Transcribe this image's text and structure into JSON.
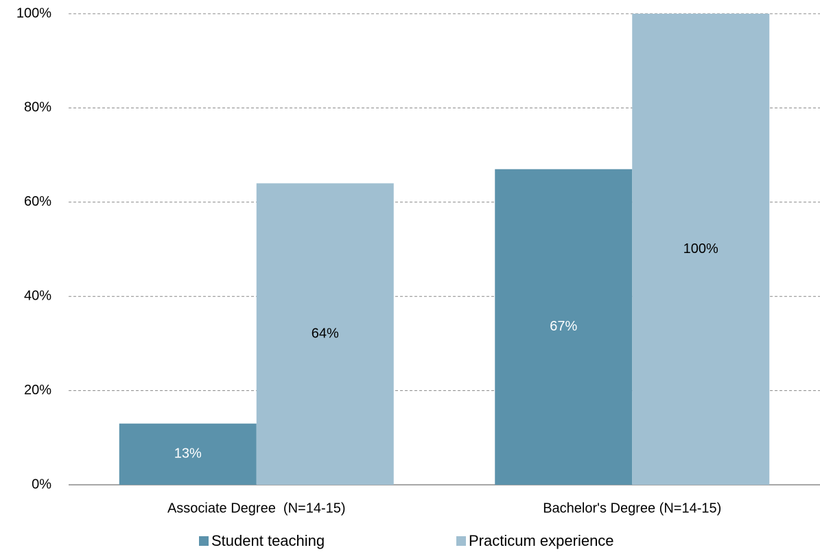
{
  "chart_data": {
    "type": "bar",
    "categories": [
      "Associate Degree  (N=14-15)",
      "Bachelor's Degree (N=14-15)"
    ],
    "series": [
      {
        "name": "Student teaching",
        "color": "#5b92ab",
        "label_color": "#ffffff",
        "values": [
          13,
          67
        ],
        "value_labels": [
          "13%",
          "67%"
        ]
      },
      {
        "name": "Practicum experience",
        "color": "#a0bfd1",
        "label_color": "#000000",
        "values": [
          64,
          100
        ],
        "value_labels": [
          "64%",
          "100%"
        ]
      }
    ],
    "ylim": [
      0,
      100
    ],
    "yticks": [
      {
        "value": 0,
        "label": "0%"
      },
      {
        "value": 20,
        "label": "20%"
      },
      {
        "value": 40,
        "label": "40%"
      },
      {
        "value": 60,
        "label": "60%"
      },
      {
        "value": 80,
        "label": "80%"
      },
      {
        "value": 100,
        "label": "100%"
      }
    ],
    "grid": true,
    "legend": "bottom"
  }
}
